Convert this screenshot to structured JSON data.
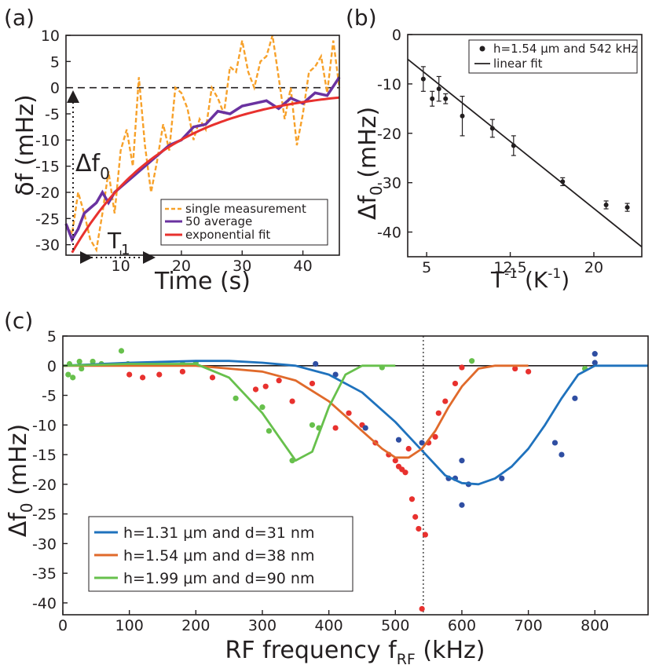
{
  "panel_a": {
    "panel_label": "(a)",
    "ylabel": "δf (mHz)",
    "xlabel": "Time (s)",
    "annotation_df0": "Δf",
    "annotation_df0_sub": "0",
    "annotation_t1": "T",
    "annotation_t1_sub": "1",
    "colors": {
      "single": "#f7a12a",
      "average": "#6a32a0",
      "fit": "#e8312e"
    }
  },
  "panel_b": {
    "panel_label": "(b)",
    "ylabel": "Δf",
    "ylabel_sub": "0",
    "ylabel_unit": " (mHz)",
    "xlabel": "T",
    "xlabel_sup": "-1",
    "xlabel_unit": " (K",
    "xlabel_unit_sup": "-1",
    "xlabel_close": ")"
  },
  "panel_c": {
    "panel_label": "(c)",
    "ylabel": "Δf",
    "ylabel_sub": "0",
    "ylabel_unit": " (mHz)",
    "xlabel": "RF frequency f",
    "xlabel_sub": "RF",
    "xlabel_unit": " (kHz)",
    "colors": {
      "blue": "#1f72bd",
      "orange": "#e06a2b",
      "green": "#67c04c",
      "blue_pts": "#2f4ea2",
      "red_pts": "#e8312e"
    }
  },
  "chart_data": [
    {
      "type": "line",
      "xlim": [
        1,
        46
      ],
      "ylim": [
        -32,
        10
      ],
      "xticks": [
        10,
        20,
        30,
        40
      ],
      "yticks": [
        10,
        5,
        0,
        -5,
        -10,
        -15,
        -20,
        -25,
        -30
      ],
      "legend": "bottom-right",
      "series": [
        {
          "name": "single measurement",
          "style": "dashed",
          "color": "#f7a12a",
          "x": [
            1,
            2,
            3,
            4,
            5,
            6,
            7,
            8,
            9,
            10,
            11,
            12,
            13,
            14,
            15,
            16,
            17,
            18,
            19,
            20,
            21,
            22,
            23,
            24,
            25,
            26,
            27,
            28,
            29,
            30,
            31,
            32,
            33,
            34,
            35,
            36,
            37,
            38,
            39,
            40,
            41,
            42,
            43,
            44,
            45,
            46
          ],
          "y": [
            -26,
            -28,
            -20,
            -24,
            -29,
            -31,
            -24,
            -16,
            -24,
            -12,
            -8,
            -15,
            2,
            -11,
            -20,
            -14,
            -7,
            -12,
            0,
            -1,
            -4,
            -10,
            -6,
            -8,
            0,
            -2,
            -5,
            4,
            3,
            9,
            3,
            0,
            5,
            6,
            10,
            2,
            -6,
            0,
            -11,
            -5,
            3,
            4,
            6,
            -1,
            9,
            0
          ]
        },
        {
          "name": "50 average",
          "style": "solid",
          "color": "#6a32a0",
          "x": [
            1,
            2,
            3,
            4,
            5,
            6,
            7,
            8,
            9,
            10,
            12,
            14,
            16,
            18,
            20,
            22,
            24,
            26,
            28,
            30,
            32,
            34,
            36,
            38,
            40,
            42,
            44,
            46
          ],
          "y": [
            -26,
            -29,
            -27,
            -24,
            -23,
            -22,
            -20,
            -22,
            -20,
            -19,
            -17,
            -15,
            -13,
            -11,
            -10,
            -7.5,
            -7,
            -4.5,
            -5,
            -3.5,
            -3,
            -2.5,
            -4,
            -2,
            -3,
            -1,
            -1.5,
            2
          ]
        },
        {
          "name": "exponential fit",
          "style": "solid",
          "color": "#e8312e",
          "model": "y = -31.5*exp(-(x-2)/15.6)",
          "x_range": [
            2,
            46
          ]
        }
      ]
    },
    {
      "type": "scatter",
      "xlim": [
        3.3,
        24.3
      ],
      "ylim": [
        -45,
        0
      ],
      "xticks": [
        5,
        12.5,
        20
      ],
      "yticks": [
        0,
        -10,
        -20,
        -30,
        -40
      ],
      "legend": "top-right",
      "series": [
        {
          "name": "h=1.54 μm and 542 kHz",
          "x": [
            4.7,
            5.5,
            6.1,
            6.7,
            8.2,
            10.9,
            12.8,
            17.2,
            21.1,
            23
          ],
          "y": [
            -9,
            -13,
            -11,
            -13,
            -16.5,
            -19,
            -22.5,
            -29.8,
            -34.5,
            -35
          ],
          "yerr": [
            2.5,
            1.5,
            2.5,
            1.0,
            4.0,
            1.8,
            2.0,
            0.8,
            0.8,
            0.8
          ]
        },
        {
          "name": "linear fit",
          "model": "line from (3.3,-5) to (24.3,-43)"
        }
      ]
    },
    {
      "type": "line",
      "xlim": [
        0,
        880
      ],
      "ylim": [
        -42,
        5
      ],
      "xticks": [
        0,
        100,
        200,
        300,
        400,
        500,
        600,
        700,
        800
      ],
      "yticks": [
        5,
        0,
        -5,
        -10,
        -15,
        -20,
        -25,
        -30,
        -35,
        -40
      ],
      "vline_x": 542,
      "legend": "bottom-left",
      "series": [
        {
          "name": "h=1.31 μm and d=31 nm",
          "color": "#1f72bd",
          "x": [
            0,
            100,
            200,
            250,
            300,
            350,
            400,
            450,
            500,
            525,
            550,
            575,
            600,
            625,
            650,
            675,
            700,
            725,
            750,
            775,
            800,
            830,
            880
          ],
          "y": [
            0,
            0.5,
            0.8,
            0.8,
            0.5,
            0,
            -1.5,
            -4.5,
            -9.5,
            -12.5,
            -15.5,
            -18.5,
            -19.8,
            -20,
            -19,
            -17,
            -14,
            -10,
            -5.5,
            -1.5,
            0,
            0,
            0
          ]
        },
        {
          "name": "h=1.54 μm and d=38 nm",
          "color": "#e06a2b",
          "x": [
            0,
            100,
            200,
            250,
            300,
            350,
            400,
            450,
            480,
            500,
            520,
            540,
            560,
            580,
            600,
            625,
            650,
            675,
            700
          ],
          "y": [
            0,
            0,
            0,
            -0.5,
            -1,
            -2.5,
            -6,
            -11,
            -14,
            -15.5,
            -15.5,
            -14,
            -11,
            -7,
            -3.5,
            -0.5,
            0,
            0,
            0
          ]
        },
        {
          "name": "h=1.99 μm and d=90 nm",
          "color": "#67c04c",
          "x": [
            0,
            100,
            200,
            250,
            300,
            325,
            350,
            375,
            400,
            425,
            450,
            475,
            500
          ],
          "y": [
            0,
            0.3,
            0.3,
            -2,
            -8,
            -12,
            -16,
            -14.5,
            -7,
            -1.5,
            0,
            0,
            0
          ]
        },
        {
          "name": "green points",
          "color": "#67c04c",
          "x": [
            8,
            10,
            15,
            25,
            28,
            45,
            58,
            88,
            98,
            180,
            200,
            260,
            300,
            310,
            345,
            375,
            385,
            480,
            615,
            785
          ],
          "y": [
            -1.5,
            0.3,
            -2,
            0.7,
            -0.5,
            0.7,
            0.3,
            2.5,
            0.3,
            0.3,
            0.5,
            -5.5,
            -7,
            -11,
            -16,
            -10,
            -10.5,
            -0.3,
            0.8,
            -0.5
          ]
        },
        {
          "name": "red points",
          "color": "#e8312e",
          "x": [
            100,
            120,
            145,
            180,
            225,
            290,
            305,
            325,
            345,
            375,
            410,
            430,
            450,
            470,
            490,
            500,
            505,
            510,
            515,
            520,
            525,
            530,
            535,
            540,
            545,
            550,
            560,
            565,
            575,
            590,
            600,
            680,
            700
          ],
          "y": [
            -1.5,
            -2,
            -1.5,
            -1,
            -2,
            -4,
            -3.5,
            -2.5,
            -6,
            -3,
            -10.5,
            -8,
            -10,
            -13,
            -15,
            -16,
            -17,
            -17.5,
            -18,
            -14,
            -22.5,
            -25.5,
            -27.5,
            -41,
            -28.5,
            -13,
            -12,
            -8,
            -6,
            -3,
            -0.3,
            -0.5,
            -1
          ]
        },
        {
          "name": "blue points",
          "color": "#2f4ea2",
          "x": [
            380,
            410,
            455,
            505,
            540,
            580,
            590,
            600,
            600,
            610,
            660,
            740,
            750,
            770,
            800,
            800
          ],
          "y": [
            0.3,
            -1.5,
            -10.5,
            -12.5,
            -13,
            -19,
            -19,
            -16,
            -23.5,
            -20,
            -19,
            -13,
            -15,
            -5.5,
            0.5,
            2
          ]
        }
      ]
    }
  ]
}
